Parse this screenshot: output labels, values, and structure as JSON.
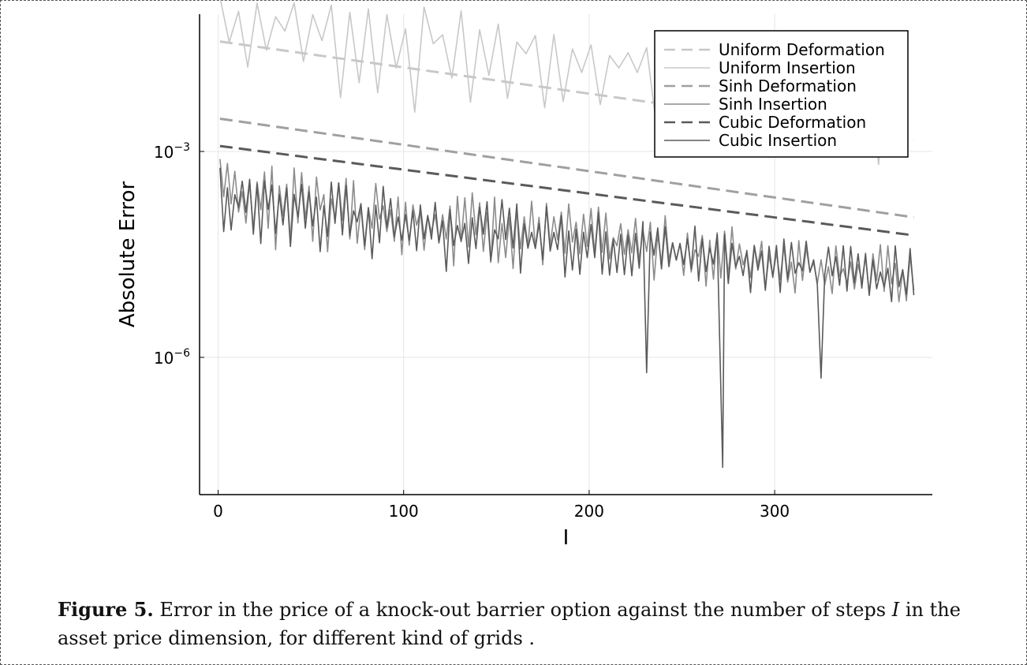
{
  "chart_data": {
    "type": "line",
    "xlabel": "I",
    "ylabel": "Absolute Error",
    "y_scale": "log",
    "xlim": [
      -10,
      385
    ],
    "ylim": [
      1e-08,
      0.1
    ],
    "xticks": [
      0,
      100,
      200,
      300
    ],
    "xtick_labels": [
      "0",
      "100",
      "200",
      "300"
    ],
    "yticks": [
      0.001,
      1e-06
    ],
    "ytick_labels": [
      {
        "base": "10",
        "exp": "−3"
      },
      {
        "base": "10",
        "exp": "−6"
      }
    ],
    "grid": true,
    "legend_position": "top-right",
    "series": [
      {
        "name": "Uniform Deformation",
        "style": "dashed",
        "color": "#c8c8c8",
        "x": [
          1,
          375
        ],
        "y": [
          0.04,
          0.0015
        ]
      },
      {
        "name": "Uniform Insertion",
        "style": "solid",
        "color": "#c8c8c8",
        "x_start": 1,
        "x_end": 375,
        "x_step": 5,
        "y_hi_start": 0.3,
        "y_hi_end": 0.02,
        "y_lo_start": 0.006,
        "y_lo_end": 0.0002
      },
      {
        "name": "Sinh Deformation",
        "style": "dashed",
        "color": "#a0a0a0",
        "x": [
          1,
          375
        ],
        "y": [
          0.003,
          0.00011
        ]
      },
      {
        "name": "Sinh Insertion",
        "style": "solid",
        "color": "#8c8c8c",
        "x_start": 1,
        "x_end": 375,
        "x_step": 2,
        "y_hi_start": 0.0008,
        "y_hi_end": 4e-05,
        "y_lo_start": 4e-05,
        "y_lo_end": 5e-06
      },
      {
        "name": "Cubic Deformation",
        "style": "dashed",
        "color": "#5a5a5a",
        "x": [
          1,
          375
        ],
        "y": [
          0.0012,
          6e-05
        ]
      },
      {
        "name": "Cubic Insertion",
        "style": "solid",
        "color": "#5a5a5a",
        "x_start": 1,
        "x_end": 375,
        "x_step": 2,
        "y_hi_start": 0.0006,
        "y_hi_end": 4e-05,
        "y_lo_start": 3e-05,
        "y_lo_end": 6e-06,
        "deep_dips": [
          {
            "x": 272,
            "y": 2.5e-08
          },
          {
            "x": 231,
            "y": 6e-07
          },
          {
            "x": 325,
            "y": 5e-07
          }
        ]
      }
    ]
  },
  "caption": {
    "label": "Figure 5.",
    "text_before": " Error in the price of a knock-out barrier option against the number of steps ",
    "symbol": "I",
    "text_after": " in the asset price dimension, for different kind of grids ."
  }
}
